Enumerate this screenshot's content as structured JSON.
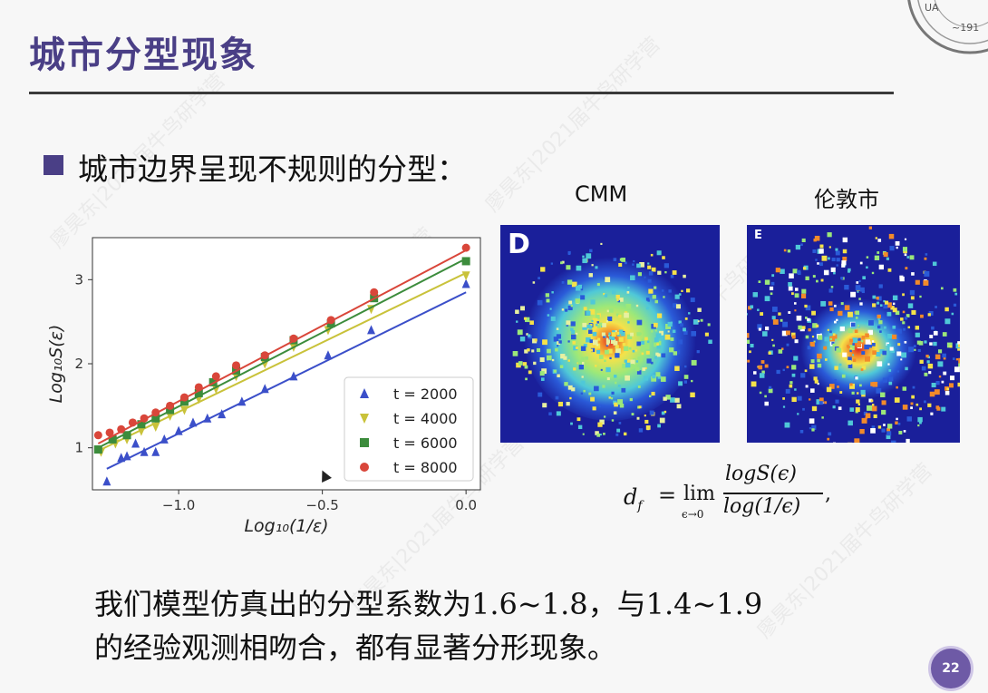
{
  "slide": {
    "title": "城市分型现象",
    "bullet_heading": "城市边界呈现不规则的分型：",
    "image_labels": [
      "CMM",
      "伦敦市"
    ],
    "panel_letters": [
      "D",
      "E"
    ],
    "conclusion_line1": "我们模型仿真出的分型系数为1.6~1.8，与1.4~1.9",
    "conclusion_line2": "的经验观测相吻合，都有显著分形现象。",
    "page_number": "22",
    "watermark_text": "廖昊东|2021届牛鸟研学营",
    "formula": {
      "lhs": "d",
      "lhs_sub": "f",
      "eq": "=",
      "lim": "lim",
      "lim_sub": "ϵ→0",
      "numerator": "logS(ϵ)",
      "denominator": "log(1/ϵ)",
      "trail": ","
    },
    "colors": {
      "title": "#4a3f86",
      "panel_bg": "#1a1f9a"
    }
  },
  "chart_data": {
    "type": "scatter",
    "xlabel": "Log₁₀(1/ε)",
    "ylabel": "Log₁₀S(ε)",
    "xlim": [
      -1.3,
      0.05
    ],
    "ylim": [
      0.5,
      3.5
    ],
    "xticks": [
      -1.0,
      -0.5,
      0.0
    ],
    "xtick_labels": [
      "−1.0",
      "−0.5",
      "0.0"
    ],
    "yticks": [
      1,
      2,
      3
    ],
    "ytick_labels": [
      "1",
      "2",
      "3"
    ],
    "legend_position": "bottom-right",
    "series": [
      {
        "name": "t = 2000",
        "color": "#3b4fc9",
        "marker": "triangle-up",
        "x": [
          -1.25,
          -1.2,
          -1.18,
          -1.15,
          -1.12,
          -1.08,
          -1.05,
          -1.0,
          -0.95,
          -0.9,
          -0.85,
          -0.78,
          -0.7,
          -0.6,
          -0.48,
          -0.33,
          0.0
        ],
        "y": [
          0.6,
          0.88,
          0.9,
          1.05,
          0.95,
          0.95,
          1.1,
          1.2,
          1.3,
          1.35,
          1.4,
          1.55,
          1.7,
          1.85,
          2.1,
          2.4,
          2.95
        ],
        "fit": [
          [
            -1.25,
            0.75
          ],
          [
            0.0,
            2.85
          ]
        ]
      },
      {
        "name": "t = 4000",
        "color": "#c9c23a",
        "marker": "triangle-down",
        "x": [
          -1.27,
          -1.22,
          -1.18,
          -1.13,
          -1.08,
          -1.03,
          -0.98,
          -0.93,
          -0.87,
          -0.8,
          -0.7,
          -0.6,
          -0.48,
          -0.33,
          0.0
        ],
        "y": [
          0.95,
          1.05,
          1.1,
          1.2,
          1.25,
          1.38,
          1.45,
          1.58,
          1.7,
          1.85,
          2.0,
          2.2,
          2.4,
          2.65,
          3.05
        ],
        "fit": [
          [
            -1.27,
            0.98
          ],
          [
            0.0,
            3.08
          ]
        ]
      },
      {
        "name": "t = 6000",
        "color": "#3c8c3c",
        "marker": "square",
        "x": [
          -1.28,
          -1.23,
          -1.18,
          -1.13,
          -1.08,
          -1.03,
          -0.98,
          -0.93,
          -0.88,
          -0.8,
          -0.7,
          -0.6,
          -0.47,
          -0.32,
          0.0
        ],
        "y": [
          0.98,
          1.1,
          1.15,
          1.28,
          1.35,
          1.45,
          1.55,
          1.65,
          1.78,
          1.92,
          2.08,
          2.28,
          2.48,
          2.78,
          3.22
        ],
        "fit": [
          [
            -1.28,
            1.0
          ],
          [
            0.0,
            3.25
          ]
        ]
      },
      {
        "name": "t = 8000",
        "color": "#d9463a",
        "marker": "circle",
        "x": [
          -1.28,
          -1.24,
          -1.2,
          -1.16,
          -1.12,
          -1.08,
          -1.03,
          -0.98,
          -0.93,
          -0.87,
          -0.8,
          -0.7,
          -0.6,
          -0.47,
          -0.32,
          0.0
        ],
        "y": [
          1.15,
          1.18,
          1.22,
          1.3,
          1.35,
          1.42,
          1.5,
          1.6,
          1.72,
          1.85,
          1.98,
          2.1,
          2.3,
          2.52,
          2.85,
          3.38
        ],
        "fit": [
          [
            -1.28,
            1.05
          ],
          [
            0.0,
            3.35
          ]
        ]
      }
    ]
  }
}
